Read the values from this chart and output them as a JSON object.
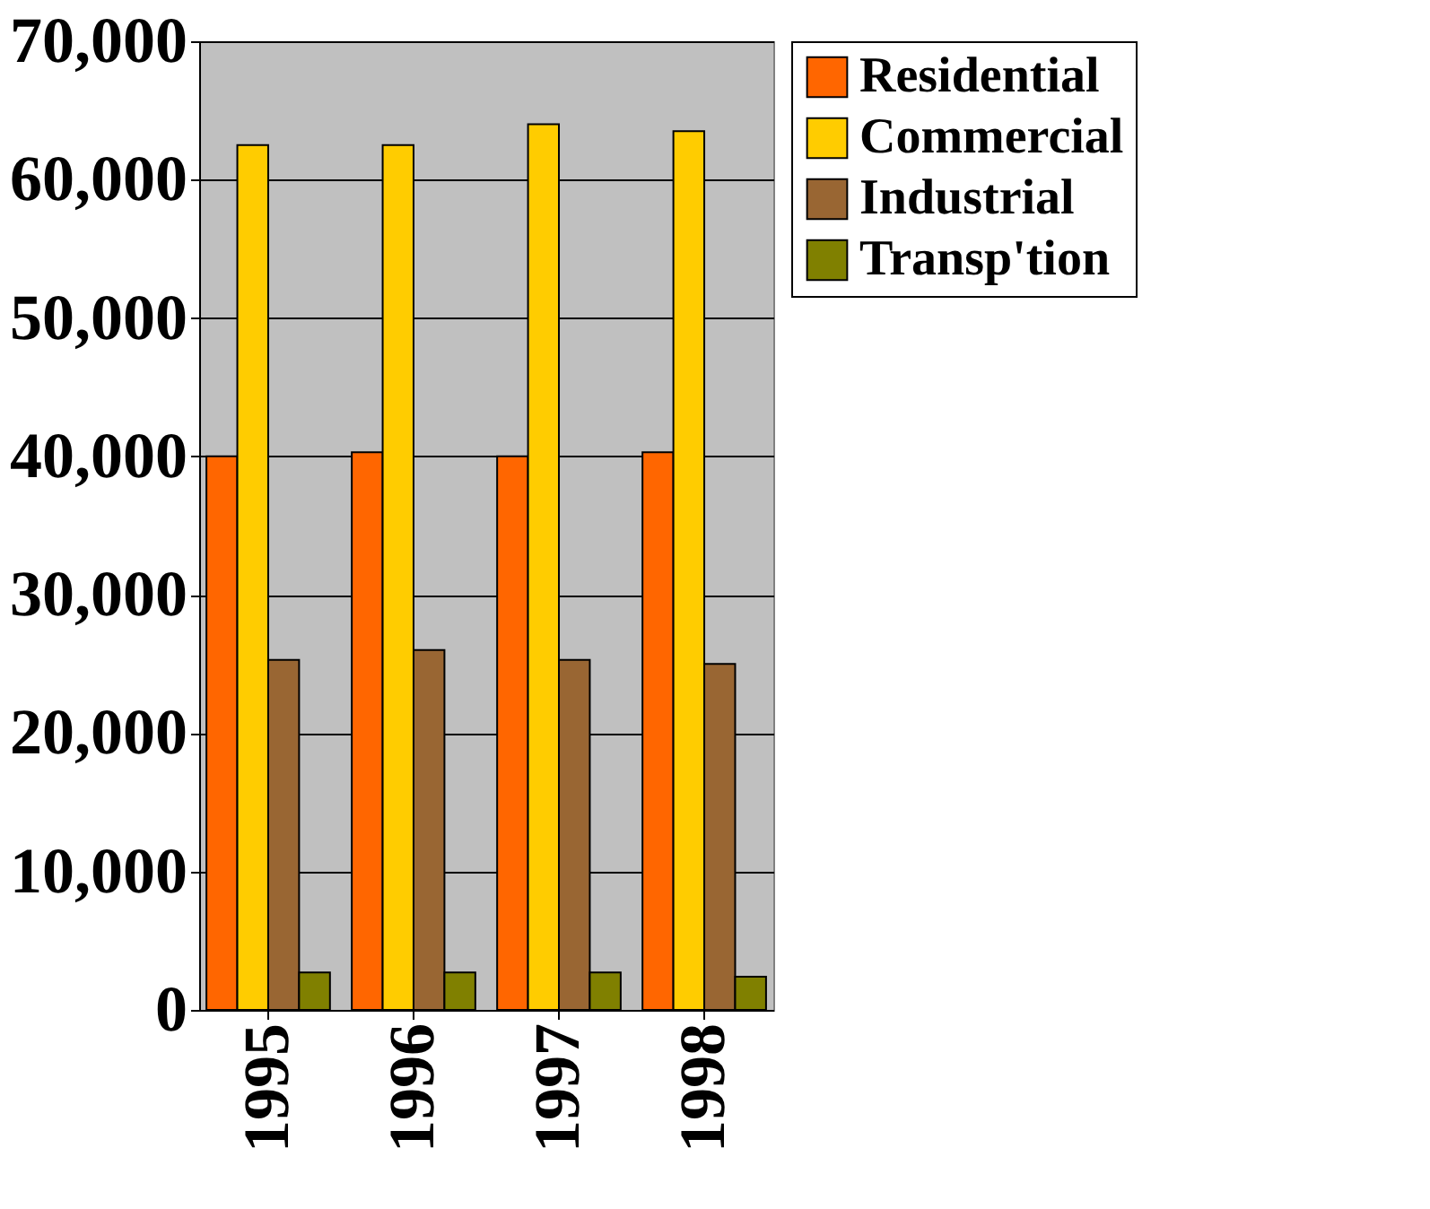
{
  "chart_data": {
    "type": "bar",
    "categories": [
      "1995",
      "1996",
      "1997",
      "1998"
    ],
    "series": [
      {
        "name": "Residential",
        "color": "#ff6600",
        "values": [
          40000,
          40300,
          40000,
          40300
        ]
      },
      {
        "name": "Commercial",
        "color": "#ffcc00",
        "values": [
          62500,
          62500,
          64000,
          63500
        ]
      },
      {
        "name": "Industrial",
        "color": "#996633",
        "values": [
          25300,
          26000,
          25300,
          25000
        ]
      },
      {
        "name": "Transp'tion",
        "color": "#808000",
        "values": [
          2700,
          2700,
          2700,
          2400
        ]
      }
    ],
    "ylim": [
      0,
      70000
    ],
    "yticks": [
      {
        "value": 0,
        "label": "0"
      },
      {
        "value": 10000,
        "label": "10,000"
      },
      {
        "value": 20000,
        "label": "20,000"
      },
      {
        "value": 30000,
        "label": "30,000"
      },
      {
        "value": 40000,
        "label": "40,000"
      },
      {
        "value": 50000,
        "label": "50,000"
      },
      {
        "value": 60000,
        "label": "60,000"
      },
      {
        "value": 70000,
        "label": "70,000"
      }
    ],
    "grid": "y",
    "legend": "right"
  }
}
